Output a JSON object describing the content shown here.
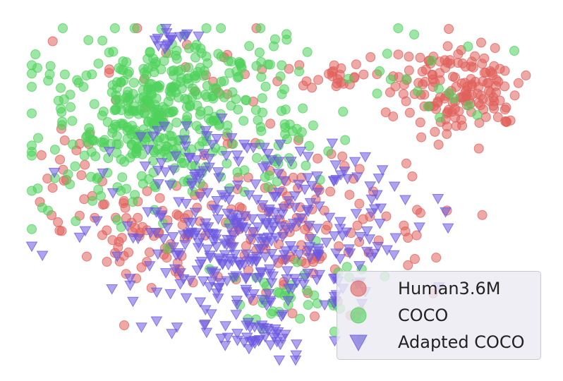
{
  "chart_data": {
    "type": "scatter",
    "title": "",
    "xlabel": "",
    "ylabel": "",
    "grid": false,
    "axes_visible": false,
    "legend_position": "bottom-right",
    "series": [
      {
        "name": "Human3.6M",
        "marker": "circle",
        "color": "#e0605b",
        "clusters": [
          {
            "cx": 650,
            "cy": 125,
            "sx": 45,
            "sy": 32,
            "n": 150
          },
          {
            "cx": 480,
            "cy": 110,
            "sx": 50,
            "sy": 14,
            "n": 30
          },
          {
            "cx": 420,
            "cy": 320,
            "sx": 95,
            "sy": 55,
            "n": 140
          },
          {
            "cx": 200,
            "cy": 330,
            "sx": 55,
            "sy": 40,
            "n": 60
          },
          {
            "cx": 90,
            "cy": 220,
            "sx": 35,
            "sy": 45,
            "n": 20
          },
          {
            "cx": 260,
            "cy": 90,
            "sx": 70,
            "sy": 35,
            "n": 20
          }
        ]
      },
      {
        "name": "COCO",
        "marker": "circle",
        "color": "#4fd15b",
        "clusters": [
          {
            "cx": 225,
            "cy": 150,
            "sx": 60,
            "sy": 45,
            "n": 220
          },
          {
            "cx": 180,
            "cy": 200,
            "sx": 90,
            "sy": 65,
            "n": 160
          },
          {
            "cx": 320,
            "cy": 100,
            "sx": 60,
            "sy": 40,
            "n": 60
          },
          {
            "cx": 420,
            "cy": 200,
            "sx": 40,
            "sy": 30,
            "n": 25
          },
          {
            "cx": 420,
            "cy": 420,
            "sx": 55,
            "sy": 30,
            "n": 40
          },
          {
            "cx": 600,
            "cy": 110,
            "sx": 60,
            "sy": 40,
            "n": 20
          }
        ]
      },
      {
        "name": "Adapted COCO",
        "marker": "triangle-down",
        "color": "#6b58e0",
        "clusters": [
          {
            "cx": 360,
            "cy": 340,
            "sx": 100,
            "sy": 55,
            "n": 330
          },
          {
            "cx": 370,
            "cy": 470,
            "sx": 30,
            "sy": 18,
            "n": 40
          },
          {
            "cx": 240,
            "cy": 55,
            "sx": 14,
            "sy": 10,
            "n": 15
          },
          {
            "cx": 290,
            "cy": 220,
            "sx": 60,
            "sy": 30,
            "n": 30
          },
          {
            "cx": 470,
            "cy": 240,
            "sx": 35,
            "sy": 15,
            "n": 15
          }
        ]
      }
    ]
  },
  "legend": {
    "items": [
      {
        "label": "Human3.6M"
      },
      {
        "label": "COCO"
      },
      {
        "label": "Adapted COCO"
      }
    ]
  }
}
